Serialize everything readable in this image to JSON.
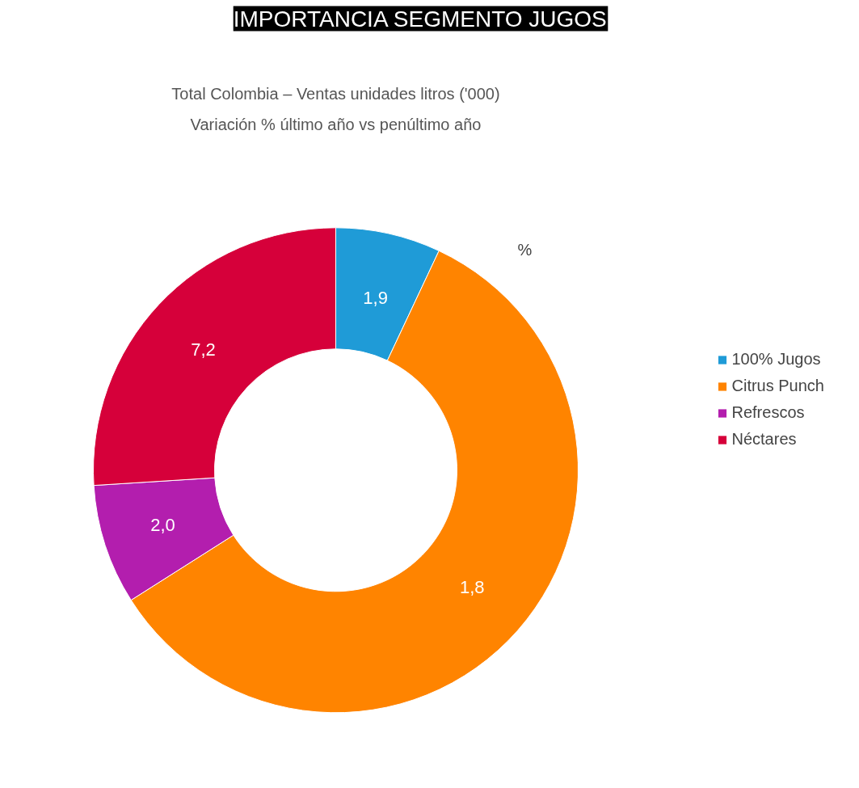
{
  "chart_data": {
    "type": "donut",
    "title": "IMPORTANCIA SEGMENTO JUGOS",
    "subtitle": "Total Colombia – Ventas unidades litros ('000)\nVariación % último año vs penúltimo año",
    "categories": [
      "100% Jugos",
      "Citrus Punch",
      "Refrescos",
      "Néctares"
    ],
    "values": [
      7,
      59,
      8,
      26
    ],
    "colors": [
      "#1f9bd7",
      "#ff8400",
      "#b31eae",
      "#d6003a"
    ],
    "annotations": [
      "%",
      {
        "text": "1,9",
        "x": "100% Jugos"
      },
      {
        "text": "1,8",
        "x": "Citrus Punch"
      },
      {
        "text": "2,0",
        "x": "Refrescos"
      },
      {
        "text": "7,2",
        "x": "Néctares"
      }
    ],
    "legend": "right"
  }
}
